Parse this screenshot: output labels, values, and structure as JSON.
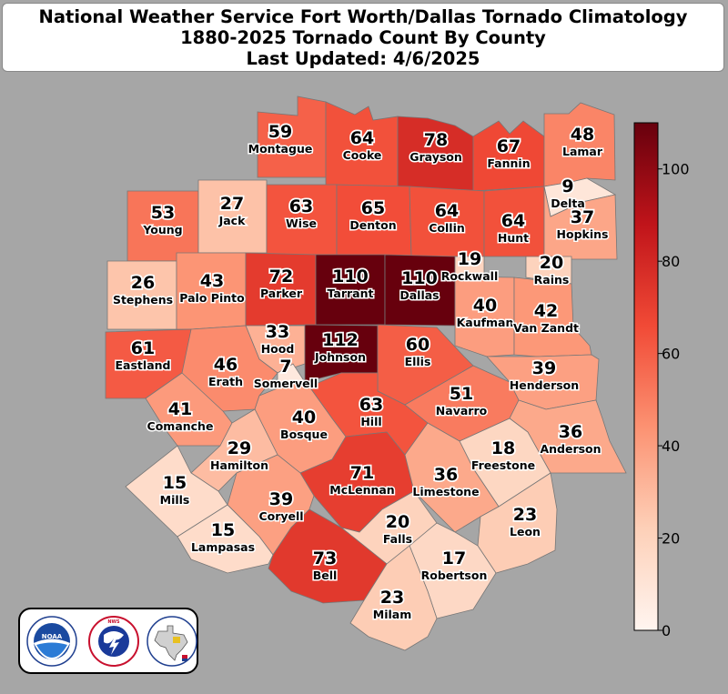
{
  "title": {
    "line1": "National Weather Service Fort Worth/Dallas Tornado Climatology",
    "line2": "1880-2025 Tornado Count By County",
    "line3": "Last Updated: 4/6/2025"
  },
  "colorbar": {
    "min": 0,
    "max": 110,
    "ticks": [
      "0",
      "20",
      "40",
      "60",
      "80",
      "100"
    ],
    "colors": [
      "#fff5f0",
      "#fdd0b8",
      "#fc9272",
      "#f14a36",
      "#c0141a",
      "#67000d"
    ]
  },
  "counties": [
    {
      "name": "Montague",
      "count": 59
    },
    {
      "name": "Cooke",
      "count": 64
    },
    {
      "name": "Grayson",
      "count": 78
    },
    {
      "name": "Fannin",
      "count": 67
    },
    {
      "name": "Lamar",
      "count": 48
    },
    {
      "name": "Delta",
      "count": 9
    },
    {
      "name": "Young",
      "count": 53
    },
    {
      "name": "Jack",
      "count": 27
    },
    {
      "name": "Wise",
      "count": 63
    },
    {
      "name": "Denton",
      "count": 65
    },
    {
      "name": "Collin",
      "count": 64
    },
    {
      "name": "Hunt",
      "count": 64
    },
    {
      "name": "Hopkins",
      "count": 37
    },
    {
      "name": "Stephens",
      "count": 26
    },
    {
      "name": "Palo Pinto",
      "count": 43
    },
    {
      "name": "Parker",
      "count": 72
    },
    {
      "name": "Tarrant",
      "count": 110
    },
    {
      "name": "Dallas",
      "count": 110
    },
    {
      "name": "Rockwall",
      "count": 19
    },
    {
      "name": "Rains",
      "count": 20
    },
    {
      "name": "Kaufman",
      "count": 40
    },
    {
      "name": "Van Zandt",
      "count": 42
    },
    {
      "name": "Eastland",
      "count": 61
    },
    {
      "name": "Hood",
      "count": 33
    },
    {
      "name": "Johnson",
      "count": 112
    },
    {
      "name": "Ellis",
      "count": 60
    },
    {
      "name": "Erath",
      "count": 46
    },
    {
      "name": "Somervell",
      "count": 7
    },
    {
      "name": "Henderson",
      "count": 39
    },
    {
      "name": "Comanche",
      "count": 41
    },
    {
      "name": "Bosque",
      "count": 40
    },
    {
      "name": "Hill",
      "count": 63
    },
    {
      "name": "Navarro",
      "count": 51
    },
    {
      "name": "Anderson",
      "count": 36
    },
    {
      "name": "Hamilton",
      "count": 29
    },
    {
      "name": "Freestone",
      "count": 18
    },
    {
      "name": "Mills",
      "count": 15
    },
    {
      "name": "McLennan",
      "count": 71
    },
    {
      "name": "Limestone",
      "count": 36
    },
    {
      "name": "Coryell",
      "count": 39
    },
    {
      "name": "Lampasas",
      "count": 15
    },
    {
      "name": "Falls",
      "count": 20
    },
    {
      "name": "Leon",
      "count": 23
    },
    {
      "name": "Bell",
      "count": 73
    },
    {
      "name": "Robertson",
      "count": 17
    },
    {
      "name": "Milam",
      "count": 23
    }
  ],
  "logos": {
    "noaa": "NOAA",
    "nws": "NATIONAL WEATHER SERVICE",
    "wfo_icon": "texas-map-seal-icon"
  }
}
